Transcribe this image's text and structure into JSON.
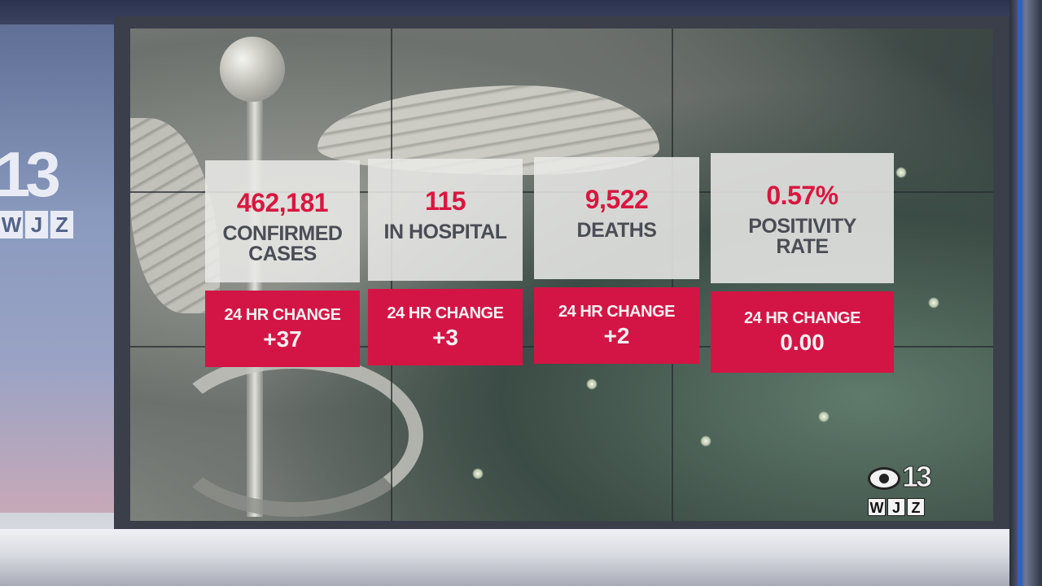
{
  "station_logo": {
    "channel_number": "13",
    "call_letters": [
      "W",
      "J",
      "Z"
    ]
  },
  "bug_logo": {
    "channel_number": "13",
    "call_letters": [
      "W",
      "J",
      "Z"
    ]
  },
  "stats": [
    {
      "value": "462,181",
      "label_line1": "CONFIRMED",
      "label_line2": "CASES",
      "change_label": "24 HR CHANGE",
      "change_value": "+37"
    },
    {
      "value": "115",
      "label_line1": "IN HOSPITAL",
      "label_line2": "",
      "change_label": "24 HR CHANGE",
      "change_value": "+3"
    },
    {
      "value": "9,522",
      "label_line1": "DEATHS",
      "label_line2": "",
      "change_label": "24 HR CHANGE",
      "change_value": "+2"
    },
    {
      "value": "0.57%",
      "label_line1": "POSITIVITY",
      "label_line2": "RATE",
      "change_label": "24 HR CHANGE",
      "change_value": "0.00"
    }
  ],
  "colors": {
    "value_red": "#d8173f",
    "change_panel_red": "#d31545",
    "label_gray": "#4a4d55"
  }
}
